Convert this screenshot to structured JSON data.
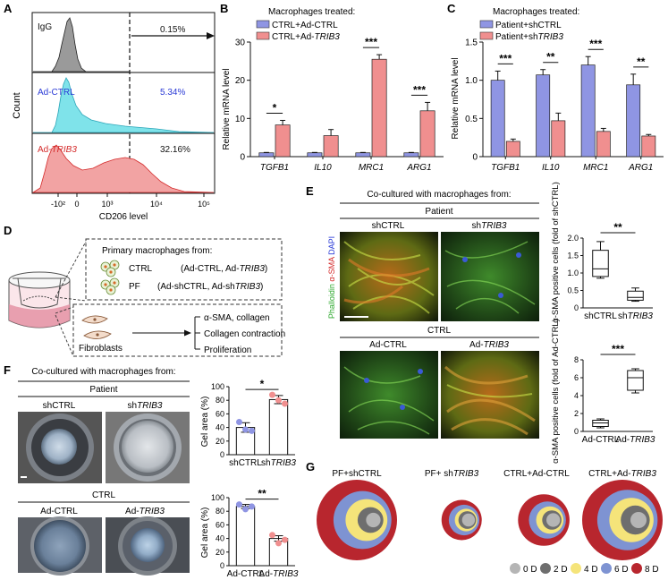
{
  "panels": {
    "A": {
      "letter": "A",
      "rows": [
        {
          "label": "IgG",
          "pct": "0.15%",
          "color": "#9a9a9a",
          "label_color": "#111111"
        },
        {
          "label": "Ad-CTRL",
          "pct": "5.34%",
          "color": "#7fe3ea",
          "label_color": "#2b3bd6"
        },
        {
          "label": "Ad-TRIB3",
          "pct": "32.16%",
          "color": "#f2a3a3",
          "label_color": "#d42a2a"
        }
      ],
      "y_label": "Count",
      "x_label": "CD206 level",
      "x_ticks": [
        "-10²",
        "0",
        "10³",
        "10⁴",
        "10⁵"
      ]
    },
    "B": {
      "letter": "B",
      "legend_title": "Macrophages treated:",
      "chart_data": {
        "type": "bar",
        "categories": [
          "TGFB1",
          "IL10",
          "MRC1",
          "ARG1"
        ],
        "series": [
          {
            "name": "CTRL+Ad-CTRL",
            "values": [
              1.0,
              1.0,
              1.0,
              1.0
            ],
            "errors": [
              0.1,
              0.1,
              0.1,
              0.1
            ],
            "color": "#8f95e3"
          },
          {
            "name": "CTRL+Ad-TRIB3",
            "values": [
              8.3,
              5.5,
              25.5,
              12.0
            ],
            "errors": [
              1.2,
              1.6,
              1.2,
              2.2
            ],
            "color": "#f08f8f"
          }
        ],
        "significance": [
          "*",
          "",
          "***",
          "***"
        ],
        "ylabel": "Relative mRNA level",
        "ylim": [
          0,
          30
        ],
        "yticks": [
          "0",
          "10",
          "20",
          "30"
        ]
      }
    },
    "C": {
      "letter": "C",
      "legend_title": "Macrophages treated:",
      "chart_data": {
        "type": "bar",
        "categories": [
          "TGFB1",
          "IL10",
          "MRC1",
          "ARG1"
        ],
        "series": [
          {
            "name": "Patient+shCTRL",
            "values": [
              1.0,
              1.07,
              1.2,
              0.94
            ],
            "errors": [
              0.12,
              0.07,
              0.11,
              0.14
            ],
            "color": "#8f95e3"
          },
          {
            "name": "Patient+shTRIB3",
            "values": [
              0.2,
              0.47,
              0.33,
              0.27
            ],
            "errors": [
              0.03,
              0.1,
              0.04,
              0.02
            ],
            "color": "#f08f8f"
          }
        ],
        "significance": [
          "***",
          "**",
          "***",
          "**"
        ],
        "ylabel": "Relative mRNA level",
        "ylim": [
          0,
          1.5
        ],
        "yticks": [
          "0",
          "0.5",
          "1.0",
          "1.5"
        ]
      }
    },
    "D": {
      "letter": "D",
      "box_title": "Primary macrophages from:",
      "rows": [
        {
          "group": "CTRL",
          "detail": "(Ad-CTRL, Ad-TRIB3)"
        },
        {
          "group": "PF",
          "detail": "(Ad-shCTRL, Ad-shTRIB3)"
        }
      ],
      "fibroblasts_label": "Fibroblasts",
      "outcomes": [
        "α-SMA, collagen",
        "Collagen contraction",
        "Proliferation"
      ]
    },
    "E": {
      "letter": "E",
      "header": "Co-cultured with macrophages from:",
      "group_top": "Patient",
      "group_bottom": "CTRL",
      "cols_top": [
        "shCTRL",
        "shTRIB3"
      ],
      "cols_bottom": [
        "Ad-CTRL",
        "Ad-TRIB3"
      ],
      "stain_label": [
        "Phalloidin",
        "α-SMA",
        "DAPI"
      ],
      "box_top": {
        "type": "box",
        "categories": [
          "shCTRL",
          "shTRIB3"
        ],
        "boxes": [
          {
            "min": 0.85,
            "q1": 0.9,
            "median": 1.12,
            "q3": 1.65,
            "max": 1.9
          },
          {
            "min": 0.19,
            "q1": 0.22,
            "median": 0.3,
            "q3": 0.48,
            "max": 0.57
          }
        ],
        "ylabel": "α-SMA positive cells (fold of shCTRL)",
        "ylim": [
          0,
          2.0
        ],
        "yticks": [
          "0",
          "0.5",
          "1.0",
          "1.5",
          "2.0"
        ],
        "significance": "**"
      },
      "box_bottom": {
        "type": "box",
        "categories": [
          "Ad-CTRL",
          "Ad-TRIB3"
        ],
        "boxes": [
          {
            "min": 0.4,
            "q1": 0.55,
            "median": 0.95,
            "q3": 1.25,
            "max": 1.4
          },
          {
            "min": 4.3,
            "q1": 4.6,
            "median": 6.0,
            "q3": 6.8,
            "max": 7.0
          }
        ],
        "ylabel": "α-SMA positive cells (fold of Ad-CTRL)",
        "ylim": [
          0,
          8
        ],
        "yticks": [
          "0",
          "2",
          "4",
          "6",
          "8"
        ],
        "significance": "***"
      }
    },
    "F": {
      "letter": "F",
      "header": "Co-cultured with macrophages from:",
      "group_top": "Patient",
      "group_bottom": "CTRL",
      "cols_top": [
        "shCTRL",
        "shTRIB3"
      ],
      "cols_bottom": [
        "Ad-CTRL",
        "Ad-TRIB3"
      ],
      "bar_top": {
        "type": "bar",
        "categories": [
          "shCTRL",
          "shTRIB3"
        ],
        "values": [
          40,
          81
        ],
        "errors": [
          7,
          6
        ],
        "points": [
          [
            48,
            37,
            35
          ],
          [
            88,
            80,
            75
          ]
        ],
        "ylabel": "Gel area (%)",
        "ylim": [
          0,
          100
        ],
        "yticks": [
          "0",
          "20",
          "40",
          "60",
          "80",
          "100"
        ],
        "significance": "*",
        "point_colors": [
          "#8f95e3",
          "#f08f8f"
        ]
      },
      "bar_bottom": {
        "type": "bar",
        "categories": [
          "Ad-CTRL",
          "Ad-TRIB3"
        ],
        "values": [
          87,
          40
        ],
        "errors": [
          3,
          4
        ],
        "points": [
          [
            90,
            83,
            87
          ],
          [
            45,
            33,
            38
          ]
        ],
        "ylabel": "Gel area (%)",
        "ylim": [
          0,
          100
        ],
        "yticks": [
          "0",
          "20",
          "40",
          "60",
          "80",
          "100"
        ],
        "significance": "**",
        "point_colors": [
          "#8f95e3",
          "#f08f8f"
        ]
      }
    },
    "G": {
      "letter": "G",
      "groups": [
        {
          "label": "PF+shCTRL",
          "radii": [
            1.0,
            0.72,
            0.52,
            0.32,
            0.18
          ]
        },
        {
          "label": "PF+ shTRIB3",
          "radii": [
            0.5,
            0.38,
            0.28,
            0.22,
            0.16
          ]
        },
        {
          "label": "CTRL+Ad-CTRL",
          "radii": [
            0.64,
            0.46,
            0.34,
            0.24,
            0.17
          ]
        },
        {
          "label": "CTRL+Ad-TRIB3",
          "radii": [
            1.0,
            0.75,
            0.55,
            0.36,
            0.2
          ]
        }
      ],
      "legend": [
        {
          "label": "0 D",
          "color": "#b5b5b5"
        },
        {
          "label": "2 D",
          "color": "#6e6e6e"
        },
        {
          "label": "4 D",
          "color": "#f5e47a"
        },
        {
          "label": "6 D",
          "color": "#7e93d2"
        },
        {
          "label": "8 D",
          "color": "#b8262e"
        }
      ]
    }
  }
}
